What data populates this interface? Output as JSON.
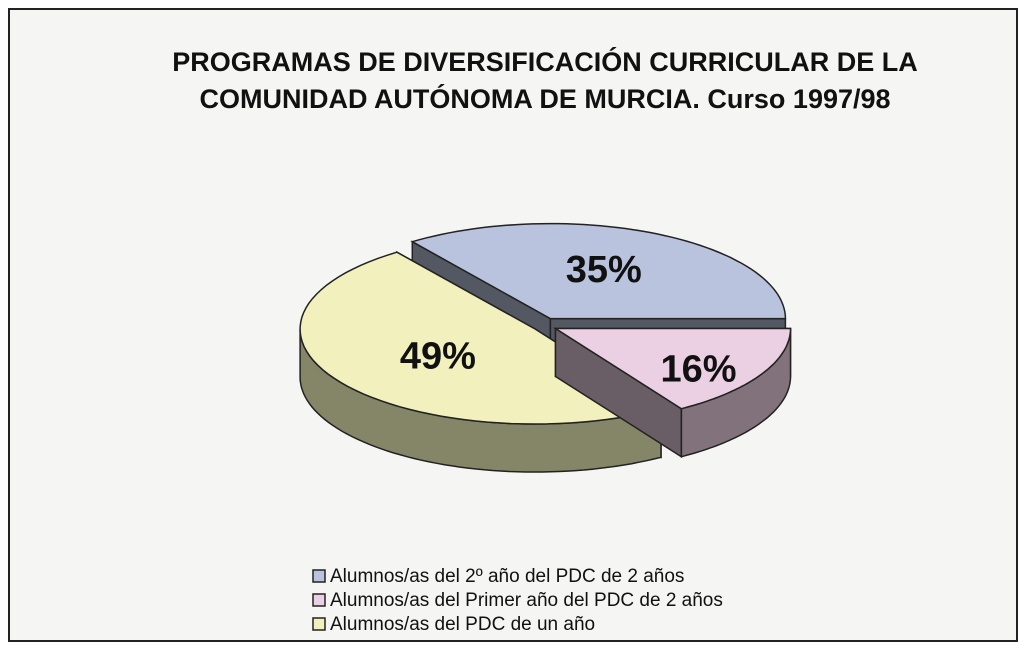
{
  "chart_data": {
    "type": "pie",
    "title": "PROGRAMAS DE DIVERSIFICACIÓN CURRICULAR DE LA COMUNIDAD AUTÓNOMA DE MURCIA. Curso 1997/98",
    "categories": [
      "Alumnos/as del 2º año del PDC de 2 años",
      "Alumnos/as del Primer año del PDC de 2 años",
      "Alumnos/as del PDC de un año"
    ],
    "values": [
      35,
      16,
      49
    ],
    "value_labels": [
      "35%",
      "16%",
      "49%"
    ],
    "colors": [
      "#b9c3dd",
      "#ead0e2",
      "#f2f1bd"
    ],
    "legend": "bottom"
  }
}
